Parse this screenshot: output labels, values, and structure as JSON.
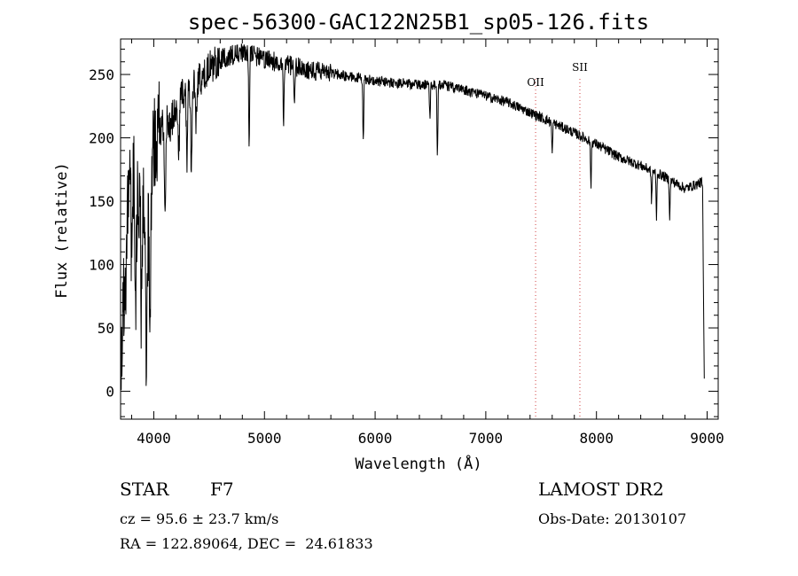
{
  "chart_data": {
    "type": "line",
    "title": "spec-56300-GAC122N25B1_sp05-126.fits",
    "xlabel": "Wavelength (Å)",
    "ylabel": "Flux (relative)",
    "xlim": [
      3700,
      9100
    ],
    "ylim": [
      -22,
      278
    ],
    "xticks": [
      4000,
      5000,
      6000,
      7000,
      8000,
      9000
    ],
    "yticks": [
      0,
      50,
      100,
      150,
      200,
      250
    ],
    "grid": false,
    "series_color": "#000000",
    "line_marker_color": "#d04040",
    "continuum": {
      "x": [
        3700,
        3730,
        3760,
        3800,
        3850,
        3900,
        3950,
        4000,
        4050,
        4100,
        4150,
        4200,
        4300,
        4400,
        4500,
        4600,
        4700,
        4800,
        4900,
        5000,
        5200,
        5400,
        5600,
        5800,
        6000,
        6200,
        6400,
        6600,
        6800,
        7000,
        7200,
        7400,
        7600,
        7800,
        8000,
        8200,
        8400,
        8600,
        8800,
        8900,
        8950,
        8975
      ],
      "y": [
        0,
        80,
        155,
        190,
        150,
        165,
        130,
        195,
        205,
        215,
        210,
        225,
        240,
        245,
        255,
        262,
        265,
        267,
        265,
        262,
        258,
        254,
        251,
        248,
        245,
        243,
        242,
        242,
        238,
        233,
        228,
        220,
        212,
        204,
        195,
        185,
        178,
        170,
        160,
        163,
        165,
        150
      ]
    },
    "absorption_lines": [
      {
        "x": 3750,
        "depth": 60
      },
      {
        "x": 3800,
        "depth": 80
      },
      {
        "x": 3835,
        "depth": 110
      },
      {
        "x": 3889,
        "depth": 100
      },
      {
        "x": 3934,
        "depth": 130
      },
      {
        "x": 3968,
        "depth": 110
      },
      {
        "x": 4102,
        "depth": 80
      },
      {
        "x": 4226,
        "depth": 40
      },
      {
        "x": 4300,
        "depth": 60
      },
      {
        "x": 4340,
        "depth": 70
      },
      {
        "x": 4383,
        "depth": 30
      },
      {
        "x": 4861,
        "depth": 75
      },
      {
        "x": 5172,
        "depth": 45
      },
      {
        "x": 5270,
        "depth": 25
      },
      {
        "x": 5893,
        "depth": 50
      },
      {
        "x": 6495,
        "depth": 25
      },
      {
        "x": 6563,
        "depth": 55
      },
      {
        "x": 7600,
        "depth": 25
      },
      {
        "x": 7950,
        "depth": 35
      },
      {
        "x": 8498,
        "depth": 25
      },
      {
        "x": 8542,
        "depth": 35
      },
      {
        "x": 8662,
        "depth": 30
      }
    ],
    "noise": [
      {
        "x": [
          3700,
          4050
        ],
        "amp": 40
      },
      {
        "x": [
          4050,
          4600
        ],
        "amp": 14
      },
      {
        "x": [
          4600,
          5600
        ],
        "amp": 8
      },
      {
        "x": [
          5600,
          9100
        ],
        "amp": 4
      }
    ],
    "annotations": [
      {
        "label": "OII",
        "x": 7450
      },
      {
        "label": "SII",
        "x": 7850
      }
    ]
  },
  "info": {
    "object_type": "STAR",
    "subclass": "F7",
    "survey": "LAMOST DR2",
    "cz": "cz = 95.6 ± 23.7 km/s",
    "obs_date": "Obs-Date: 20130107",
    "coords": "RA = 122.89064, DEC =  24.61833"
  }
}
